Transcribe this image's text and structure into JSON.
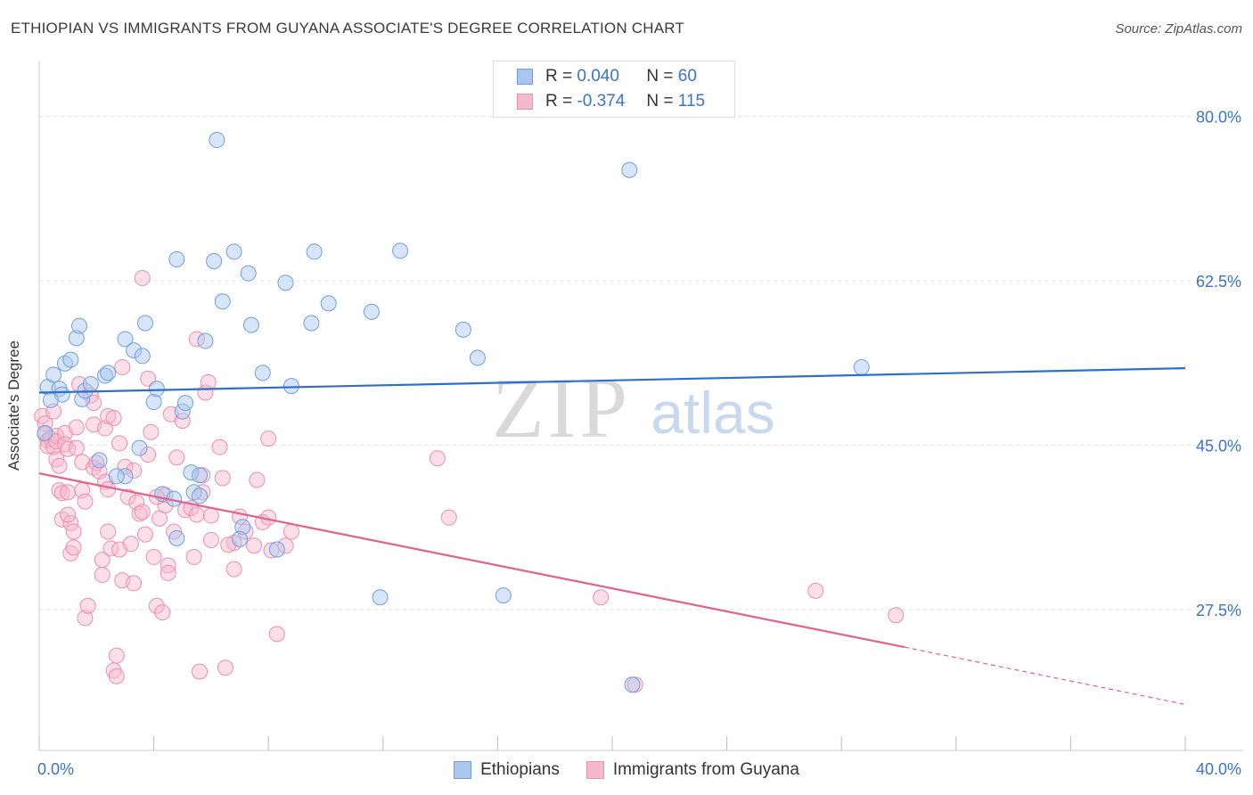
{
  "title": "ETHIOPIAN VS IMMIGRANTS FROM GUYANA ASSOCIATE'S DEGREE CORRELATION CHART",
  "source": "Source: ZipAtlas.com",
  "watermark": {
    "zip": "ZIP",
    "atlas": "atlas"
  },
  "legend": {
    "row1": {
      "r_label": "R =",
      "r_value": "0.040",
      "n_label": "N =",
      "n_value": "60"
    },
    "row2": {
      "r_label": "R =",
      "r_value": "-0.374",
      "n_label": "N =",
      "n_value": "115"
    }
  },
  "bottom_legend": {
    "series1": "Ethiopians",
    "series2": "Immigrants from Guyana"
  },
  "chart_data": {
    "type": "scatter",
    "title": "ETHIOPIAN VS IMMIGRANTS FROM GUYANA ASSOCIATE'S DEGREE CORRELATION CHART",
    "xlabel": "",
    "ylabel": "Associate's Degree",
    "xlim": [
      0,
      40
    ],
    "ylim": [
      12.5,
      85
    ],
    "x_tick_labels": [
      "0.0%",
      "40.0%"
    ],
    "y_ticks": [
      27.5,
      45.0,
      62.5,
      80.0
    ],
    "y_tick_labels": [
      "27.5%",
      "45.0%",
      "62.5%",
      "80.0%"
    ],
    "grid": true,
    "legend_position": "top-center",
    "colors": {
      "series1": "#a9c6ef",
      "series1_edge": "#6f9fdc",
      "series1_line": "#2f6fcc",
      "series2": "#f6b8cd",
      "series2_edge": "#eb8fae",
      "series2_line": "#e0628f"
    },
    "series": [
      {
        "name": "Ethiopians",
        "trend": {
          "x": [
            0,
            40
          ],
          "y": [
            50.6,
            53.2
          ]
        },
        "points": [
          [
            0.3,
            51.2
          ],
          [
            0.5,
            52.5
          ],
          [
            0.7,
            51.0
          ],
          [
            0.8,
            50.4
          ],
          [
            0.9,
            53.7
          ],
          [
            1.1,
            54.1
          ],
          [
            1.3,
            56.4
          ],
          [
            1.4,
            57.7
          ],
          [
            1.5,
            49.9
          ],
          [
            1.6,
            50.8
          ],
          [
            1.8,
            51.5
          ],
          [
            2.3,
            52.4
          ],
          [
            2.4,
            52.7
          ],
          [
            3.0,
            56.3
          ],
          [
            3.3,
            55.1
          ],
          [
            3.6,
            54.5
          ],
          [
            3.7,
            58.0
          ],
          [
            4.0,
            49.6
          ],
          [
            4.1,
            51.0
          ],
          [
            4.8,
            64.8
          ],
          [
            5.0,
            48.6
          ],
          [
            5.1,
            49.5
          ],
          [
            5.8,
            56.1
          ],
          [
            6.1,
            64.6
          ],
          [
            6.2,
            77.5
          ],
          [
            6.4,
            60.3
          ],
          [
            6.8,
            65.6
          ],
          [
            7.3,
            63.3
          ],
          [
            7.4,
            57.8
          ],
          [
            7.8,
            52.7
          ],
          [
            8.6,
            62.3
          ],
          [
            8.8,
            51.3
          ],
          [
            9.5,
            58.0
          ],
          [
            9.6,
            65.6
          ],
          [
            10.1,
            60.1
          ],
          [
            11.6,
            59.2
          ],
          [
            12.6,
            65.7
          ],
          [
            14.8,
            57.3
          ],
          [
            15.3,
            54.3
          ],
          [
            20.6,
            74.3
          ],
          [
            28.7,
            53.3
          ],
          [
            3.5,
            44.7
          ],
          [
            2.1,
            43.4
          ],
          [
            3.0,
            41.7
          ],
          [
            2.7,
            41.7
          ],
          [
            4.3,
            39.8
          ],
          [
            4.7,
            39.3
          ],
          [
            5.3,
            42.1
          ],
          [
            5.6,
            41.8
          ],
          [
            5.4,
            40.0
          ],
          [
            5.6,
            39.6
          ],
          [
            7.1,
            36.3
          ],
          [
            7.0,
            35.0
          ],
          [
            8.3,
            33.9
          ],
          [
            4.8,
            35.1
          ],
          [
            11.9,
            28.8
          ],
          [
            16.2,
            29.0
          ],
          [
            20.7,
            19.5
          ],
          [
            0.2,
            46.3
          ],
          [
            0.4,
            49.8
          ]
        ]
      },
      {
        "name": "Immigrants from Guyana",
        "trend": {
          "x": [
            0,
            30.2
          ],
          "y": [
            42.0,
            23.5
          ],
          "dashed_x": [
            30.2,
            40
          ],
          "dashed_y": [
            23.5,
            17.4
          ]
        },
        "points": [
          [
            0.1,
            48.1
          ],
          [
            0.2,
            47.3
          ],
          [
            0.2,
            46.2
          ],
          [
            0.3,
            45.5
          ],
          [
            0.3,
            44.9
          ],
          [
            0.4,
            45.7
          ],
          [
            0.5,
            44.8
          ],
          [
            0.6,
            46.0
          ],
          [
            0.6,
            45.4
          ],
          [
            0.6,
            43.5
          ],
          [
            0.7,
            42.8
          ],
          [
            0.7,
            40.2
          ],
          [
            0.8,
            39.9
          ],
          [
            0.8,
            37.1
          ],
          [
            0.9,
            46.3
          ],
          [
            0.9,
            45.1
          ],
          [
            1.0,
            44.6
          ],
          [
            1.0,
            40.0
          ],
          [
            1.1,
            36.7
          ],
          [
            1.1,
            33.5
          ],
          [
            1.2,
            35.8
          ],
          [
            1.2,
            34.1
          ],
          [
            1.3,
            46.9
          ],
          [
            1.3,
            44.7
          ],
          [
            1.4,
            51.5
          ],
          [
            1.5,
            43.2
          ],
          [
            1.5,
            40.2
          ],
          [
            1.6,
            39.0
          ],
          [
            1.6,
            26.6
          ],
          [
            1.7,
            27.9
          ],
          [
            1.8,
            50.3
          ],
          [
            1.9,
            47.2
          ],
          [
            1.9,
            42.6
          ],
          [
            2.0,
            43.1
          ],
          [
            2.1,
            42.2
          ],
          [
            2.2,
            32.8
          ],
          [
            2.2,
            31.2
          ],
          [
            2.3,
            41.1
          ],
          [
            2.3,
            46.8
          ],
          [
            2.4,
            48.1
          ],
          [
            2.4,
            40.3
          ],
          [
            2.4,
            35.8
          ],
          [
            2.5,
            34.0
          ],
          [
            2.6,
            47.9
          ],
          [
            2.6,
            21.0
          ],
          [
            2.7,
            20.4
          ],
          [
            2.7,
            22.6
          ],
          [
            2.8,
            45.2
          ],
          [
            2.8,
            33.9
          ],
          [
            2.9,
            30.6
          ],
          [
            3.0,
            42.7
          ],
          [
            3.1,
            39.5
          ],
          [
            3.2,
            34.5
          ],
          [
            3.3,
            42.3
          ],
          [
            3.4,
            38.9
          ],
          [
            3.5,
            37.7
          ],
          [
            3.6,
            37.9
          ],
          [
            3.7,
            35.5
          ],
          [
            3.8,
            44.0
          ],
          [
            3.9,
            46.4
          ],
          [
            4.0,
            33.1
          ],
          [
            4.1,
            27.9
          ],
          [
            4.2,
            37.2
          ],
          [
            4.3,
            27.2
          ],
          [
            4.4,
            39.7
          ],
          [
            4.4,
            38.6
          ],
          [
            4.5,
            32.2
          ],
          [
            4.5,
            31.4
          ],
          [
            4.6,
            48.3
          ],
          [
            4.8,
            43.7
          ],
          [
            5.0,
            47.6
          ],
          [
            5.1,
            38.1
          ],
          [
            5.3,
            38.3
          ],
          [
            5.4,
            33.1
          ],
          [
            5.5,
            37.6
          ],
          [
            5.6,
            20.9
          ],
          [
            5.7,
            41.8
          ],
          [
            5.8,
            50.6
          ],
          [
            5.9,
            51.7
          ],
          [
            6.0,
            34.9
          ],
          [
            6.3,
            44.8
          ],
          [
            6.4,
            41.5
          ],
          [
            6.5,
            21.3
          ],
          [
            6.8,
            34.6
          ],
          [
            6.8,
            31.8
          ],
          [
            7.0,
            37.4
          ],
          [
            7.2,
            35.8
          ],
          [
            7.5,
            34.3
          ],
          [
            7.6,
            41.3
          ],
          [
            7.8,
            36.8
          ],
          [
            8.0,
            37.3
          ],
          [
            8.1,
            33.8
          ],
          [
            8.3,
            24.9
          ],
          [
            8.6,
            34.3
          ],
          [
            8.8,
            35.8
          ],
          [
            5.5,
            56.3
          ],
          [
            3.6,
            62.8
          ],
          [
            8.0,
            45.7
          ],
          [
            4.1,
            39.5
          ],
          [
            6.6,
            34.4
          ],
          [
            14.3,
            37.3
          ],
          [
            19.6,
            28.8
          ],
          [
            27.1,
            29.5
          ],
          [
            29.9,
            26.9
          ],
          [
            20.8,
            19.5
          ],
          [
            13.9,
            43.6
          ],
          [
            5.7,
            40.0
          ],
          [
            6.0,
            37.5
          ],
          [
            4.7,
            35.8
          ],
          [
            3.3,
            30.3
          ],
          [
            1.0,
            37.6
          ],
          [
            0.5,
            48.6
          ],
          [
            1.9,
            49.5
          ],
          [
            2.9,
            53.3
          ],
          [
            3.8,
            52.1
          ]
        ]
      }
    ]
  }
}
